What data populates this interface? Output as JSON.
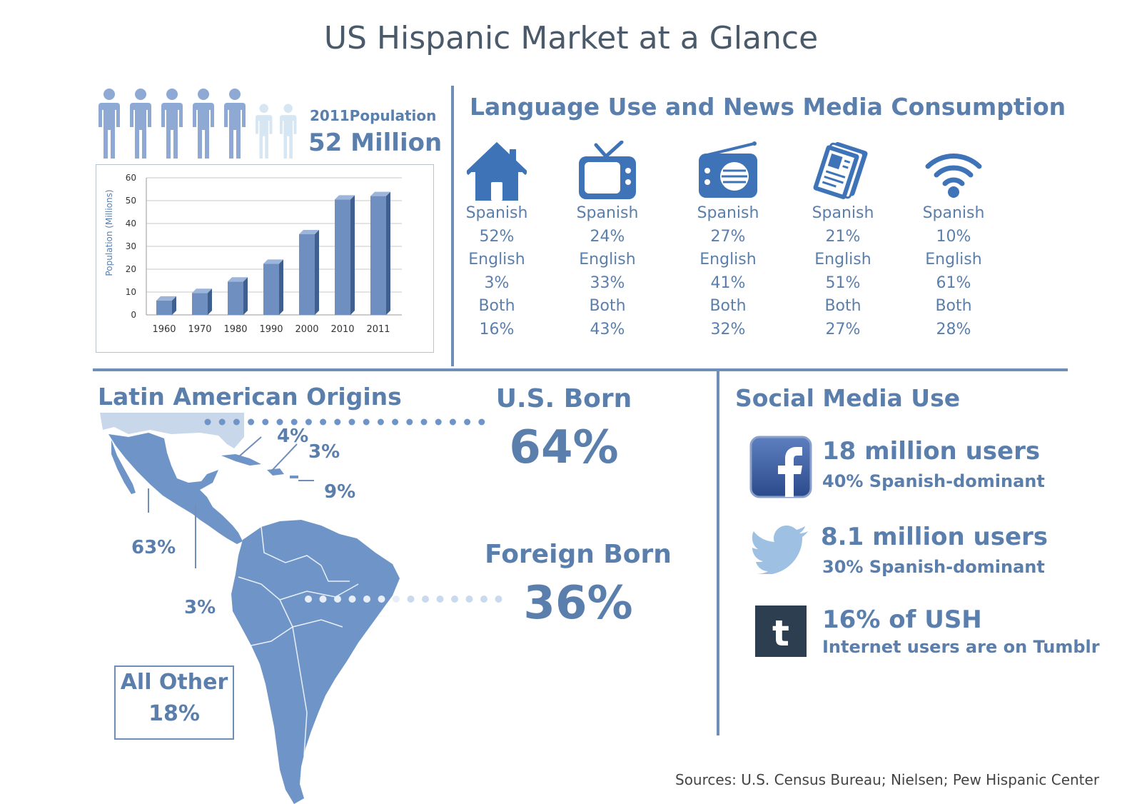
{
  "title": "US Hispanic Market at a Glance",
  "population": {
    "label": "2011Population",
    "value": "52 Million"
  },
  "chart_data": {
    "type": "bar",
    "categories": [
      "1960",
      "1970",
      "1980",
      "1990",
      "2000",
      "2010",
      "2011"
    ],
    "values": [
      6.3,
      9.6,
      14.6,
      22.4,
      35.3,
      50.5,
      52
    ],
    "title": "",
    "xlabel": "",
    "ylabel": "Population (Millions)",
    "ylim": [
      0,
      60
    ],
    "yticks": [
      "0",
      "10",
      "20",
      "30",
      "40",
      "50",
      "60"
    ],
    "grid": true,
    "bar_color": "#6f8fc0"
  },
  "language": {
    "title": "Language Use and News Media Consumption",
    "columns": [
      {
        "icon": "house-icon",
        "lines": [
          "Spanish",
          "52%",
          "English",
          "3%",
          "Both",
          "16%"
        ]
      },
      {
        "icon": "tv-icon",
        "lines": [
          "Spanish",
          "24%",
          "English",
          "33%",
          "Both",
          "43%"
        ]
      },
      {
        "icon": "radio-icon",
        "lines": [
          "Spanish",
          "27%",
          "English",
          "41%",
          "Both",
          "32%"
        ]
      },
      {
        "icon": "newspaper-icon",
        "lines": [
          "Spanish",
          "21%",
          "English",
          "51%",
          "Both",
          "27%"
        ]
      },
      {
        "icon": "wifi-icon",
        "lines": [
          "Spanish",
          "10%",
          "English",
          "61%",
          "Both",
          "28%"
        ]
      }
    ]
  },
  "origins": {
    "title": "Latin American Origins",
    "pct_mexico": "63%",
    "pct_central": "3%",
    "pct_cuba": "4%",
    "pct_dominican": "3%",
    "pct_puerto_rico": "9%",
    "other_label": "All Other",
    "other_value": "18%"
  },
  "born": {
    "us_label": "U.S. Born",
    "us_value": "64%",
    "foreign_label": "Foreign Born",
    "foreign_value": "36%"
  },
  "social": {
    "title": "Social Media Use",
    "facebook": {
      "icon": "facebook-icon",
      "main": "18 million users",
      "sub": "40% Spanish-dominant"
    },
    "twitter": {
      "icon": "twitter-icon",
      "main": "8.1 million users",
      "sub": "30% Spanish-dominant"
    },
    "tumblr": {
      "icon": "tumblr-icon",
      "main": "16% of USH",
      "sub": "Internet users are on Tumblr"
    }
  },
  "sources": "Sources: U.S. Census Bureau; Nielsen; Pew Hispanic Center"
}
